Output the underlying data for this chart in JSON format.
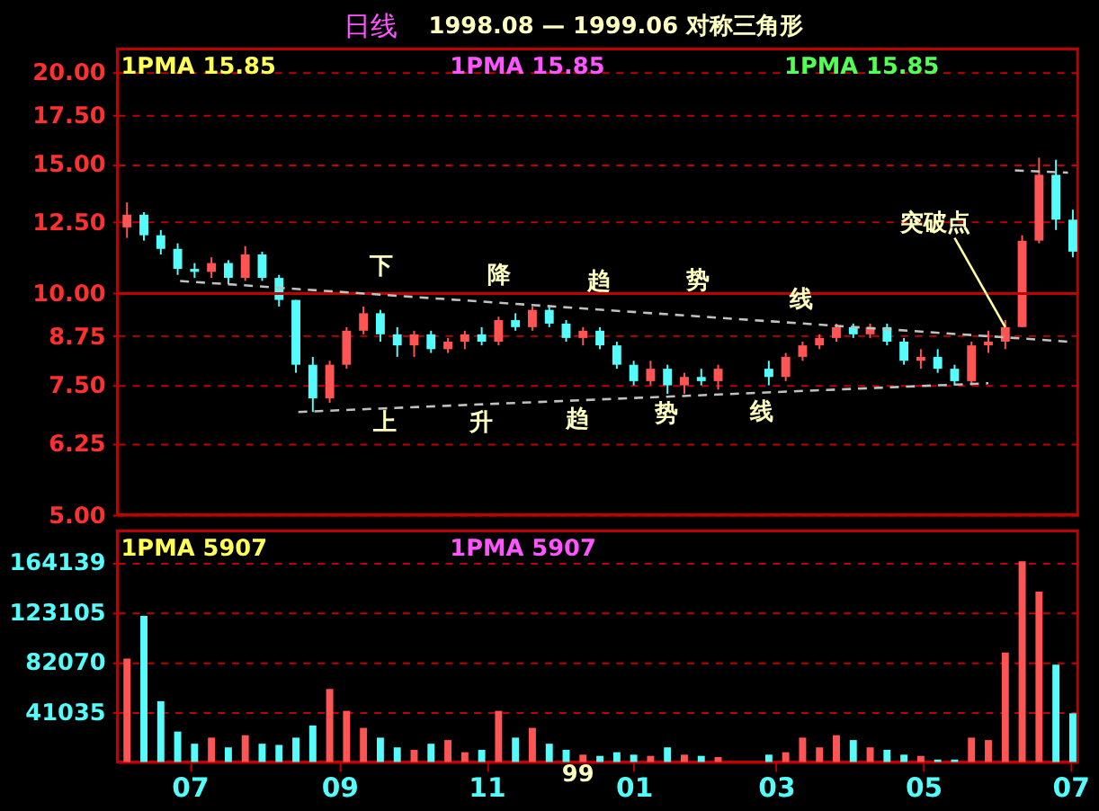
{
  "chart_data": [
    {
      "type": "candlestick",
      "title": "1998.08 — 1999.06 对称三角形",
      "subtitle": "日线",
      "x": [
        "1998-06-05",
        "1998-06-12",
        "1998-06-19",
        "1998-06-26",
        "1998-07-03",
        "1998-07-10",
        "1998-07-17",
        "1998-07-24",
        "1998-07-31",
        "1998-08-07",
        "1998-08-14",
        "1998-08-21",
        "1998-08-28",
        "1998-09-04",
        "1998-09-11",
        "1998-09-18",
        "1998-09-25",
        "1998-10-02",
        "1998-10-09",
        "1998-10-16",
        "1998-10-23",
        "1998-10-30",
        "1998-11-06",
        "1998-11-13",
        "1998-11-20",
        "1998-11-27",
        "1998-12-04",
        "1998-12-11",
        "1998-12-18",
        "1998-12-25",
        "1999-01-01",
        "1999-01-08",
        "1999-01-15",
        "1999-01-22",
        "1999-01-29",
        "1999-02-05",
        "1999-02-26",
        "1999-03-05",
        "1999-03-12",
        "1999-03-19",
        "1999-03-26",
        "1999-04-02",
        "1999-04-09",
        "1999-04-16",
        "1999-04-23",
        "1999-04-30",
        "1999-05-07",
        "1999-05-14",
        "1999-05-21",
        "1999-05-28",
        "1999-06-04",
        "1999-06-11",
        "1999-06-18",
        "1999-06-25",
        "1999-07-02"
      ],
      "ohlc": [
        [
          12.3,
          13.3,
          11.9,
          12.8
        ],
        [
          12.8,
          12.9,
          11.8,
          12.0
        ],
        [
          12.0,
          12.2,
          11.3,
          11.5
        ],
        [
          11.5,
          11.7,
          10.6,
          10.8
        ],
        [
          10.8,
          11.0,
          10.5,
          10.7
        ],
        [
          10.7,
          11.2,
          10.5,
          11.0
        ],
        [
          11.0,
          11.1,
          10.3,
          10.5
        ],
        [
          10.5,
          11.6,
          10.4,
          11.3
        ],
        [
          11.3,
          11.4,
          10.4,
          10.5
        ],
        [
          10.5,
          10.6,
          9.6,
          9.8
        ],
        [
          9.8,
          9.8,
          7.8,
          8.0
        ],
        [
          8.0,
          8.2,
          6.9,
          7.2
        ],
        [
          7.2,
          8.1,
          7.1,
          8.0
        ],
        [
          8.0,
          9.0,
          7.9,
          8.9
        ],
        [
          8.9,
          9.6,
          8.8,
          9.4
        ],
        [
          9.4,
          9.5,
          8.6,
          8.8
        ],
        [
          8.8,
          9.0,
          8.2,
          8.5
        ],
        [
          8.5,
          8.9,
          8.2,
          8.8
        ],
        [
          8.8,
          8.9,
          8.3,
          8.4
        ],
        [
          8.4,
          8.7,
          8.3,
          8.6
        ],
        [
          8.6,
          8.9,
          8.4,
          8.8
        ],
        [
          8.8,
          9.0,
          8.5,
          8.6
        ],
        [
          8.6,
          9.3,
          8.5,
          9.2
        ],
        [
          9.2,
          9.4,
          8.9,
          9.0
        ],
        [
          9.0,
          9.6,
          8.9,
          9.5
        ],
        [
          9.5,
          9.6,
          9.0,
          9.1
        ],
        [
          9.1,
          9.2,
          8.6,
          8.7
        ],
        [
          8.7,
          9.0,
          8.5,
          8.9
        ],
        [
          8.9,
          9.0,
          8.4,
          8.5
        ],
        [
          8.5,
          8.6,
          7.9,
          8.0
        ],
        [
          8.0,
          8.1,
          7.5,
          7.6
        ],
        [
          7.6,
          8.1,
          7.5,
          7.9
        ],
        [
          7.9,
          8.0,
          7.3,
          7.5
        ],
        [
          7.5,
          7.8,
          7.3,
          7.7
        ],
        [
          7.7,
          7.9,
          7.5,
          7.6
        ],
        [
          7.6,
          8.0,
          7.4,
          7.9
        ],
        [
          7.9,
          8.1,
          7.5,
          7.7
        ],
        [
          7.7,
          8.3,
          7.6,
          8.2
        ],
        [
          8.2,
          8.6,
          8.1,
          8.5
        ],
        [
          8.5,
          8.8,
          8.4,
          8.7
        ],
        [
          8.7,
          9.1,
          8.6,
          9.0
        ],
        [
          9.0,
          9.1,
          8.7,
          8.8
        ],
        [
          8.8,
          9.1,
          8.7,
          9.0
        ],
        [
          9.0,
          9.1,
          8.5,
          8.6
        ],
        [
          8.6,
          8.7,
          8.0,
          8.1
        ],
        [
          8.1,
          8.4,
          7.9,
          8.2
        ],
        [
          8.2,
          8.4,
          7.8,
          7.9
        ],
        [
          7.9,
          8.0,
          7.5,
          7.6
        ],
        [
          7.6,
          8.6,
          7.5,
          8.5
        ],
        [
          8.5,
          8.9,
          8.3,
          8.6
        ],
        [
          8.6,
          9.2,
          8.4,
          9.0
        ],
        [
          9.0,
          12.0,
          9.0,
          11.8
        ],
        [
          11.8,
          15.3,
          11.7,
          14.5
        ],
        [
          14.5,
          15.2,
          12.2,
          12.6
        ],
        [
          12.6,
          13.0,
          11.2,
          11.4
        ]
      ],
      "colors": [
        "#ff5454",
        "#54fcfc",
        "#54fcfc",
        "#54fcfc",
        "#54fcfc",
        "#ff5454",
        "#54fcfc",
        "#ff5454",
        "#54fcfc",
        "#54fcfc",
        "#54fcfc",
        "#54fcfc",
        "#ff5454",
        "#ff5454",
        "#ff5454",
        "#54fcfc",
        "#54fcfc",
        "#ff5454",
        "#54fcfc",
        "#ff5454",
        "#ff5454",
        "#54fcfc",
        "#ff5454",
        "#54fcfc",
        "#ff5454",
        "#54fcfc",
        "#54fcfc",
        "#ff5454",
        "#54fcfc",
        "#54fcfc",
        "#54fcfc",
        "#ff5454",
        "#54fcfc",
        "#ff5454",
        "#54fcfc",
        "#ff5454",
        "#54fcfc",
        "#ff5454",
        "#ff5454",
        "#ff5454",
        "#ff5454",
        "#54fcfc",
        "#ff5454",
        "#54fcfc",
        "#54fcfc",
        "#ff5454",
        "#54fcfc",
        "#54fcfc",
        "#ff5454",
        "#ff5454",
        "#ff5454",
        "#ff5454",
        "#ff5454",
        "#54fcfc",
        "#54fcfc"
      ],
      "series": [
        {
          "type": "line",
          "color": "#c0c0c0",
          "line_style": "dashed",
          "x": [
            "1998-06-27",
            "1999-06-30"
          ],
          "values": [
            10.4,
            8.6
          ]
        },
        {
          "type": "line",
          "color": "#c0c0c0",
          "line_style": "dashed",
          "x": [
            "1998-08-15",
            "1999-05-28"
          ],
          "values": [
            6.9,
            7.55
          ]
        },
        {
          "type": "line",
          "color": "#c0c0c0",
          "line_style": "dashed",
          "x": [
            "1999-06-08",
            "1999-06-30"
          ],
          "values": [
            14.7,
            14.6
          ]
        },
        {
          "type": "line",
          "color": "#ffffa0",
          "line_style": "solid",
          "x": [
            "1999-05-14",
            "1999-06-04"
          ],
          "values": [
            11.9,
            9.0
          ]
        }
      ],
      "ref_lines": [
        {
          "axis": "y",
          "value": 10,
          "color": "#c00000",
          "line_style": "solid"
        }
      ],
      "annotations": [
        "1PMA   15.85",
        "1PMA   15.85",
        "1PMA   15.85",
        "下",
        "降",
        "趋",
        "势",
        "线",
        "上",
        "升",
        "趋",
        "势",
        "线",
        "突破点"
      ],
      "xlim": [
        "1998-06-01",
        "1999-07-04"
      ],
      "ylim": [
        5,
        21.5
      ],
      "log": "y",
      "yticks": [
        {
          "value": 5,
          "label": "5.00"
        },
        {
          "value": 6.25,
          "label": "6.25"
        },
        {
          "value": 7.5,
          "label": "7.50"
        },
        {
          "value": 8.75,
          "label": "8.75"
        },
        {
          "value": 10,
          "label": "10.00"
        },
        {
          "value": 12.5,
          "label": "12.50"
        },
        {
          "value": 15,
          "label": "15.00"
        },
        {
          "value": 17.5,
          "label": "17.50"
        },
        {
          "value": 20,
          "label": "20.00"
        }
      ],
      "grid": "y",
      "tick_labels": "y"
    },
    {
      "type": "bar",
      "x": [
        "1998-06-05",
        "1998-06-12",
        "1998-06-19",
        "1998-06-26",
        "1998-07-03",
        "1998-07-10",
        "1998-07-17",
        "1998-07-24",
        "1998-07-31",
        "1998-08-07",
        "1998-08-14",
        "1998-08-21",
        "1998-08-28",
        "1998-09-04",
        "1998-09-11",
        "1998-09-18",
        "1998-09-25",
        "1998-10-02",
        "1998-10-09",
        "1998-10-16",
        "1998-10-23",
        "1998-10-30",
        "1998-11-06",
        "1998-11-13",
        "1998-11-20",
        "1998-11-27",
        "1998-12-04",
        "1998-12-11",
        "1998-12-18",
        "1998-12-25",
        "1999-01-01",
        "1999-01-08",
        "1999-01-15",
        "1999-01-22",
        "1999-01-29",
        "1999-02-05",
        "1999-02-26",
        "1999-03-05",
        "1999-03-12",
        "1999-03-19",
        "1999-03-26",
        "1999-04-02",
        "1999-04-09",
        "1999-04-16",
        "1999-04-23",
        "1999-04-30",
        "1999-05-07",
        "1999-05-14",
        "1999-05-21",
        "1999-05-28",
        "1999-06-04",
        "1999-06-11",
        "1999-06-18",
        "1999-06-25",
        "1999-07-02"
      ],
      "values": [
        85000,
        120000,
        50000,
        25000,
        15000,
        20000,
        12000,
        22000,
        15000,
        14000,
        20000,
        30000,
        60000,
        42000,
        28000,
        20000,
        12000,
        10000,
        15000,
        18000,
        8000,
        10000,
        42000,
        20000,
        28000,
        15000,
        10000,
        6000,
        5000,
        8000,
        6000,
        5000,
        12000,
        6000,
        5000,
        4000,
        6000,
        8000,
        20000,
        12000,
        22000,
        18000,
        12000,
        10000,
        6000,
        5000,
        2000,
        2000,
        20000,
        18000,
        90000,
        165000,
        140000,
        80000,
        40000
      ],
      "colors": [
        "#ff5454",
        "#54fcfc",
        "#54fcfc",
        "#54fcfc",
        "#54fcfc",
        "#ff5454",
        "#54fcfc",
        "#ff5454",
        "#54fcfc",
        "#54fcfc",
        "#54fcfc",
        "#54fcfc",
        "#ff5454",
        "#ff5454",
        "#ff5454",
        "#54fcfc",
        "#54fcfc",
        "#ff5454",
        "#54fcfc",
        "#ff5454",
        "#ff5454",
        "#54fcfc",
        "#ff5454",
        "#54fcfc",
        "#ff5454",
        "#54fcfc",
        "#54fcfc",
        "#ff5454",
        "#54fcfc",
        "#54fcfc",
        "#54fcfc",
        "#ff5454",
        "#54fcfc",
        "#ff5454",
        "#54fcfc",
        "#ff5454",
        "#54fcfc",
        "#ff5454",
        "#ff5454",
        "#ff5454",
        "#ff5454",
        "#54fcfc",
        "#ff5454",
        "#54fcfc",
        "#54fcfc",
        "#ff5454",
        "#54fcfc",
        "#54fcfc",
        "#ff5454",
        "#ff5454",
        "#ff5454",
        "#ff5454",
        "#ff5454",
        "#54fcfc",
        "#54fcfc"
      ],
      "annotations": [
        "1PMA   5907",
        "1PMA   5907",
        "99"
      ],
      "xlim": [
        "1998-06-01",
        "1999-07-04"
      ],
      "xticks": [
        {
          "value": "1998-07-01",
          "label": "07"
        },
        {
          "value": "1998-09-01",
          "label": "09"
        },
        {
          "value": "1998-11-01",
          "label": "11"
        },
        {
          "value": "1999-01-01",
          "label": "01"
        },
        {
          "value": "1999-03-01",
          "label": "03"
        },
        {
          "value": "1999-05-01",
          "label": "05"
        },
        {
          "value": "1999-07-01",
          "label": "07"
        }
      ],
      "ylim": [
        0,
        190000
      ],
      "yticks": [
        41035,
        82070,
        123105,
        164139
      ],
      "grid": "y"
    }
  ]
}
